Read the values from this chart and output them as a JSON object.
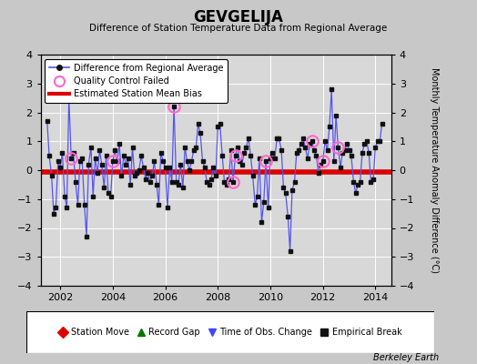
{
  "title": "GEVGELIJA",
  "subtitle": "Difference of Station Temperature Data from Regional Average",
  "ylabel_right": "Monthly Temperature Anomaly Difference (°C)",
  "bias": -0.07,
  "xlim": [
    2001.25,
    2014.6
  ],
  "ylim": [
    -4,
    4
  ],
  "yticks": [
    -4,
    -3,
    -2,
    -1,
    0,
    1,
    2,
    3,
    4
  ],
  "xticks": [
    2002,
    2004,
    2006,
    2008,
    2010,
    2012,
    2014
  ],
  "background_color": "#c8c8c8",
  "plot_bg_color": "#d8d8d8",
  "line_color": "#5555ee",
  "marker_color": "#111111",
  "bias_color": "#dd0000",
  "qc_color": "#ff66cc",
  "footer": "Berkeley Earth",
  "time_values": [
    2001.5,
    2001.58,
    2001.67,
    2001.75,
    2001.83,
    2001.92,
    2002.0,
    2002.08,
    2002.17,
    2002.25,
    2002.33,
    2002.42,
    2002.5,
    2002.58,
    2002.67,
    2002.75,
    2002.83,
    2002.92,
    2003.0,
    2003.08,
    2003.17,
    2003.25,
    2003.33,
    2003.42,
    2003.5,
    2003.58,
    2003.67,
    2003.75,
    2003.83,
    2003.92,
    2004.0,
    2004.08,
    2004.17,
    2004.25,
    2004.33,
    2004.42,
    2004.5,
    2004.58,
    2004.67,
    2004.75,
    2004.83,
    2004.92,
    2005.0,
    2005.08,
    2005.17,
    2005.25,
    2005.33,
    2005.42,
    2005.5,
    2005.58,
    2005.67,
    2005.75,
    2005.83,
    2005.92,
    2006.0,
    2006.08,
    2006.17,
    2006.25,
    2006.33,
    2006.42,
    2006.5,
    2006.58,
    2006.67,
    2006.75,
    2006.83,
    2006.92,
    2007.0,
    2007.08,
    2007.17,
    2007.25,
    2007.33,
    2007.42,
    2007.5,
    2007.58,
    2007.67,
    2007.75,
    2007.83,
    2007.92,
    2008.0,
    2008.08,
    2008.17,
    2008.25,
    2008.33,
    2008.42,
    2008.5,
    2008.58,
    2008.67,
    2008.75,
    2008.83,
    2008.92,
    2009.0,
    2009.08,
    2009.17,
    2009.25,
    2009.33,
    2009.42,
    2009.5,
    2009.58,
    2009.67,
    2009.75,
    2009.83,
    2009.92,
    2010.0,
    2010.08,
    2010.17,
    2010.25,
    2010.33,
    2010.42,
    2010.5,
    2010.58,
    2010.67,
    2010.75,
    2010.83,
    2010.92,
    2011.0,
    2011.08,
    2011.17,
    2011.25,
    2011.33,
    2011.42,
    2011.5,
    2011.58,
    2011.67,
    2011.75,
    2011.83,
    2011.92,
    2012.0,
    2012.08,
    2012.17,
    2012.25,
    2012.33,
    2012.42,
    2012.5,
    2012.58,
    2012.67,
    2012.75,
    2012.83,
    2012.92,
    2013.0,
    2013.08,
    2013.17,
    2013.25,
    2013.33,
    2013.42,
    2013.5,
    2013.58,
    2013.67,
    2013.75,
    2013.83,
    2013.92,
    2014.0,
    2014.08,
    2014.17,
    2014.25
  ],
  "data_values": [
    1.7,
    0.5,
    -0.2,
    -1.5,
    -1.3,
    0.3,
    0.1,
    0.6,
    -0.9,
    -1.3,
    2.5,
    0.4,
    0.6,
    -0.4,
    -1.2,
    0.3,
    0.4,
    -1.2,
    -2.3,
    0.2,
    0.8,
    -0.9,
    0.4,
    -0.1,
    0.7,
    0.2,
    -0.6,
    0.5,
    -0.8,
    -0.9,
    0.3,
    0.7,
    0.3,
    0.9,
    -0.2,
    0.5,
    0.2,
    0.4,
    -0.5,
    0.8,
    -0.2,
    -0.1,
    0.0,
    0.5,
    0.1,
    -0.3,
    -0.1,
    -0.4,
    -0.2,
    0.3,
    -0.5,
    -1.2,
    0.6,
    0.3,
    0.1,
    -1.3,
    0.1,
    -0.4,
    2.2,
    -0.4,
    -0.5,
    0.2,
    -0.6,
    0.8,
    0.3,
    0.0,
    0.3,
    0.7,
    0.8,
    1.6,
    1.3,
    0.3,
    0.1,
    -0.4,
    -0.5,
    -0.3,
    0.1,
    -0.2,
    1.5,
    1.6,
    0.5,
    -0.4,
    -0.5,
    -0.3,
    0.7,
    -0.4,
    0.5,
    0.8,
    0.3,
    0.2,
    0.6,
    0.8,
    1.1,
    0.5,
    -0.2,
    -1.2,
    -0.9,
    0.4,
    -1.8,
    -1.1,
    0.3,
    -1.3,
    0.4,
    0.6,
    0.4,
    1.1,
    1.1,
    0.7,
    -0.6,
    -0.8,
    -1.6,
    -2.8,
    -0.7,
    -0.4,
    0.6,
    0.7,
    0.9,
    1.1,
    0.8,
    0.4,
    0.9,
    1.0,
    0.7,
    0.5,
    -0.1,
    0.2,
    0.3,
    1.0,
    0.7,
    1.5,
    2.8,
    0.3,
    1.9,
    0.8,
    0.1,
    0.6,
    0.7,
    0.9,
    0.7,
    0.5,
    -0.4,
    -0.8,
    -0.5,
    -0.4,
    0.6,
    0.9,
    1.0,
    0.6,
    -0.4,
    -0.3,
    0.8,
    1.0,
    1.0,
    1.6
  ],
  "qc_failed_indices": [
    11,
    30,
    58,
    85,
    86,
    100,
    121,
    126,
    133
  ],
  "legend2_items": [
    {
      "label": "Station Move",
      "color": "#dd0000",
      "marker": "D"
    },
    {
      "label": "Record Gap",
      "color": "#007700",
      "marker": "^"
    },
    {
      "label": "Time of Obs. Change",
      "color": "#4444ff",
      "marker": "v"
    },
    {
      "label": "Empirical Break",
      "color": "#111111",
      "marker": "s"
    }
  ]
}
